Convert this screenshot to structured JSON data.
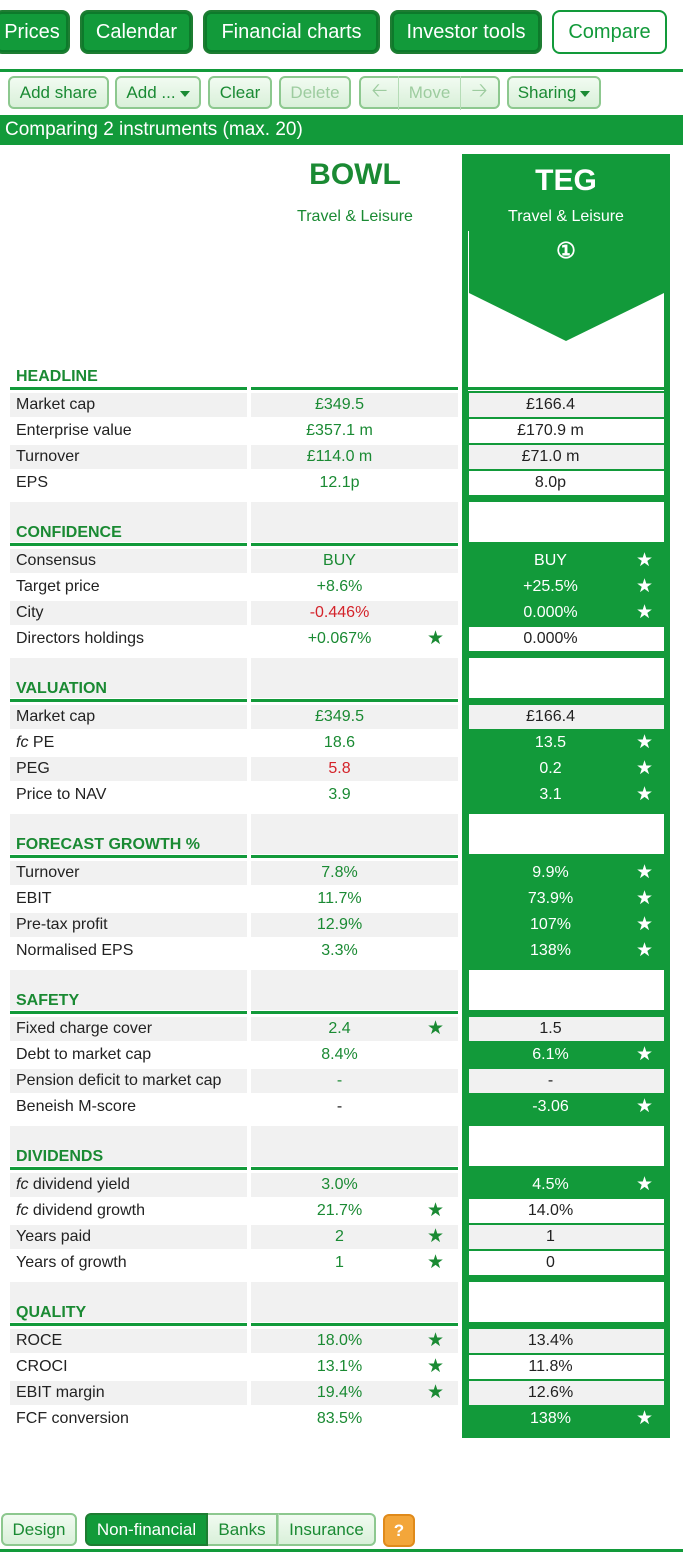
{
  "nav": {
    "tabs": [
      {
        "label": "Prices",
        "active": false
      },
      {
        "label": "Calendar",
        "active": false
      },
      {
        "label": "Financial charts",
        "active": false
      },
      {
        "label": "Investor tools",
        "active": false
      },
      {
        "label": "Compare",
        "active": true
      }
    ]
  },
  "toolbar": {
    "add_share": "Add share",
    "add_more": "Add ...",
    "clear": "Clear",
    "delete": "Delete",
    "move": "Move",
    "sharing": "Sharing"
  },
  "banner": "Comparing 2 instruments (max. 20)",
  "instruments": [
    {
      "ticker": "BOWL",
      "sector": "Travel & Leisure"
    },
    {
      "ticker": "TEG",
      "sector": "Travel & Leisure",
      "marker": "①"
    }
  ],
  "sections": [
    {
      "title": "HEADLINE",
      "rows": [
        {
          "label": "Market cap",
          "bowl": "£349.5",
          "teg": "£166.4"
        },
        {
          "label": "Enterprise value",
          "bowl": "£357.1 m",
          "teg": "£170.9 m"
        },
        {
          "label": "Turnover",
          "bowl": "£114.0 m",
          "teg": "£71.0 m"
        },
        {
          "label": "EPS",
          "bowl": "12.1p",
          "teg": "8.0p"
        }
      ]
    },
    {
      "title": "CONFIDENCE",
      "rows": [
        {
          "label": "Consensus",
          "bowl": "BUY",
          "teg": "BUY",
          "teg_star": true
        },
        {
          "label": "Target price",
          "bowl": "+8.6%",
          "teg": "+25.5%",
          "teg_star": true
        },
        {
          "label": "City",
          "bowl": "-0.446%",
          "bowl_red": true,
          "teg": "0.000%",
          "teg_star": true
        },
        {
          "label": "Directors holdings",
          "bowl": "+0.067%",
          "bowl_star": true,
          "teg": "0.000%"
        }
      ]
    },
    {
      "title": "VALUATION",
      "rows": [
        {
          "label": "Market cap",
          "bowl": "£349.5",
          "teg": "£166.4"
        },
        {
          "label": "PE",
          "prefix": "fc",
          "bowl": "18.6",
          "teg": "13.5",
          "teg_star": true
        },
        {
          "label": "PEG",
          "bowl": "5.8",
          "bowl_red": true,
          "teg": "0.2",
          "teg_star": true
        },
        {
          "label": "Price to NAV",
          "bowl": "3.9",
          "teg": "3.1",
          "teg_star": true
        }
      ]
    },
    {
      "title": "FORECAST GROWTH %",
      "rows": [
        {
          "label": "Turnover",
          "bowl": "7.8%",
          "teg": "9.9%",
          "teg_star": true
        },
        {
          "label": "EBIT",
          "bowl": "11.7%",
          "teg": "73.9%",
          "teg_star": true
        },
        {
          "label": "Pre-tax profit",
          "bowl": "12.9%",
          "teg": "107%",
          "teg_star": true
        },
        {
          "label": "Normalised EPS",
          "bowl": "3.3%",
          "teg": "138%",
          "teg_star": true
        }
      ]
    },
    {
      "title": "SAFETY",
      "rows": [
        {
          "label": "Fixed charge cover",
          "bowl": "2.4",
          "bowl_star": true,
          "teg": "1.5"
        },
        {
          "label": "Debt to market cap",
          "bowl": "8.4%",
          "teg": "6.1%",
          "teg_star": true
        },
        {
          "label": "Pension deficit to market cap",
          "bowl": "-",
          "teg": "-"
        },
        {
          "label": "Beneish M-score",
          "bowl": "-",
          "bowl_plain": true,
          "teg": "-3.06",
          "teg_star": true
        }
      ]
    },
    {
      "title": "DIVIDENDS",
      "rows": [
        {
          "label": "dividend yield",
          "prefix": "fc",
          "bowl": "3.0%",
          "teg": "4.5%",
          "teg_star": true
        },
        {
          "label": "dividend growth",
          "prefix": "fc",
          "bowl": "21.7%",
          "bowl_star": true,
          "teg": "14.0%"
        },
        {
          "label": "Years paid",
          "bowl": "2",
          "bowl_star": true,
          "teg": "1"
        },
        {
          "label": "Years of growth",
          "bowl": "1",
          "bowl_star": true,
          "teg": "0"
        }
      ]
    },
    {
      "title": "QUALITY",
      "rows": [
        {
          "label": "ROCE",
          "bowl": "18.0%",
          "bowl_star": true,
          "teg": "13.4%"
        },
        {
          "label": "CROCI",
          "bowl": "13.1%",
          "bowl_star": true,
          "teg": "11.8%"
        },
        {
          "label": "EBIT margin",
          "bowl": "19.4%",
          "bowl_star": true,
          "teg": "12.6%"
        },
        {
          "label": "FCF conversion",
          "bowl": "83.5%",
          "teg": "138%",
          "teg_star": true
        }
      ]
    }
  ],
  "star_glyph": "★",
  "bottom_tabs": [
    {
      "label": "Design",
      "active": false
    },
    {
      "label": "Non-financial",
      "active": true
    },
    {
      "label": "Banks",
      "active": false
    },
    {
      "label": "Insurance",
      "active": false
    }
  ],
  "help_label": "?",
  "colors": {
    "brand_green": "#129a3a",
    "negative_red": "#d4232a",
    "help_orange": "#f3a63a"
  }
}
